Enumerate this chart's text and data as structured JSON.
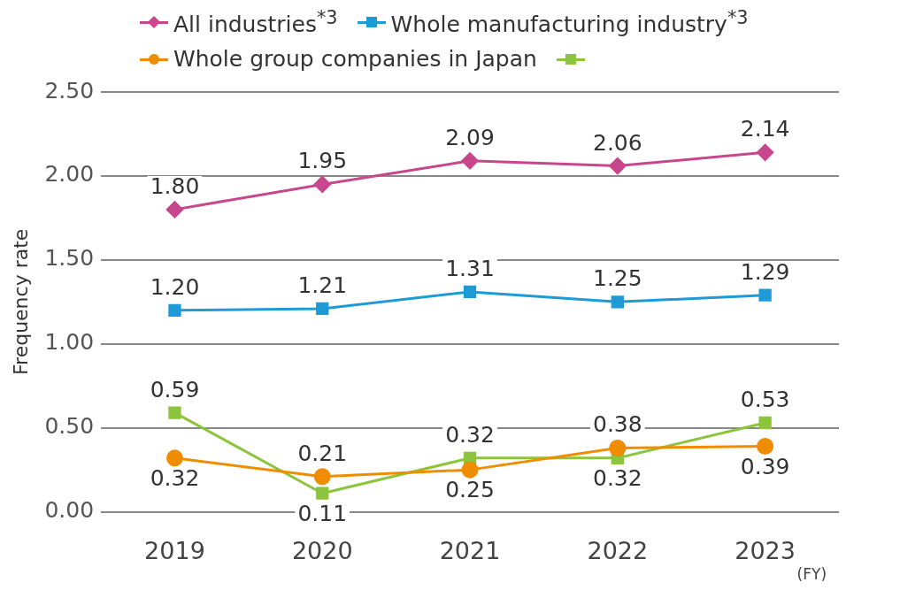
{
  "chart_data": {
    "type": "line",
    "ylabel": "Frequency rate",
    "xlabel": "(FY)",
    "categories": [
      "2019",
      "2020",
      "2021",
      "2022",
      "2023"
    ],
    "series": [
      {
        "name": "All industries$^{*3}$",
        "color": "#c8468c",
        "marker": "diamond",
        "values": [
          1.8,
          1.95,
          2.09,
          2.06,
          2.14
        ],
        "value_labels": [
          "1.80",
          "1.95",
          "2.09",
          "2.06",
          "2.14"
        ]
      },
      {
        "name": "Whole manufacturing industry$^{*3}$",
        "color": "#1e9ad6",
        "marker": "square",
        "values": [
          1.2,
          1.21,
          1.31,
          1.25,
          1.29
        ],
        "value_labels": [
          "1.20",
          "1.21",
          "1.31",
          "1.25",
          "1.29"
        ]
      },
      {
        "name": "Whole group companies in Japan",
        "color": "#f08c00",
        "marker": "circle",
        "values": [
          0.32,
          0.21,
          0.25,
          0.38,
          0.39
        ],
        "value_labels": [
          "0.32",
          "0.21",
          "0.25",
          "0.38",
          "0.39"
        ]
      },
      {
        "color": "#8cc43c",
        "marker": "square",
        "values": [
          0.59,
          0.11,
          0.32,
          0.32,
          0.53
        ],
        "value_labels": [
          "0.59",
          "0.11",
          "0.32",
          "0.32",
          "0.53"
        ]
      }
    ],
    "ylim": [
      0,
      2.5
    ],
    "yticks": [
      {
        "value": 0,
        "label": "0.00"
      },
      {
        "value": 0.5,
        "label": "0.50"
      },
      {
        "value": 1,
        "label": "1.00"
      },
      {
        "value": 1.5,
        "label": "1.50"
      },
      {
        "value": 2,
        "label": "2.00"
      },
      {
        "value": 2.5,
        "label": "2.50"
      }
    ],
    "grid": "y",
    "legend": "top",
    "line_style": "solid"
  }
}
